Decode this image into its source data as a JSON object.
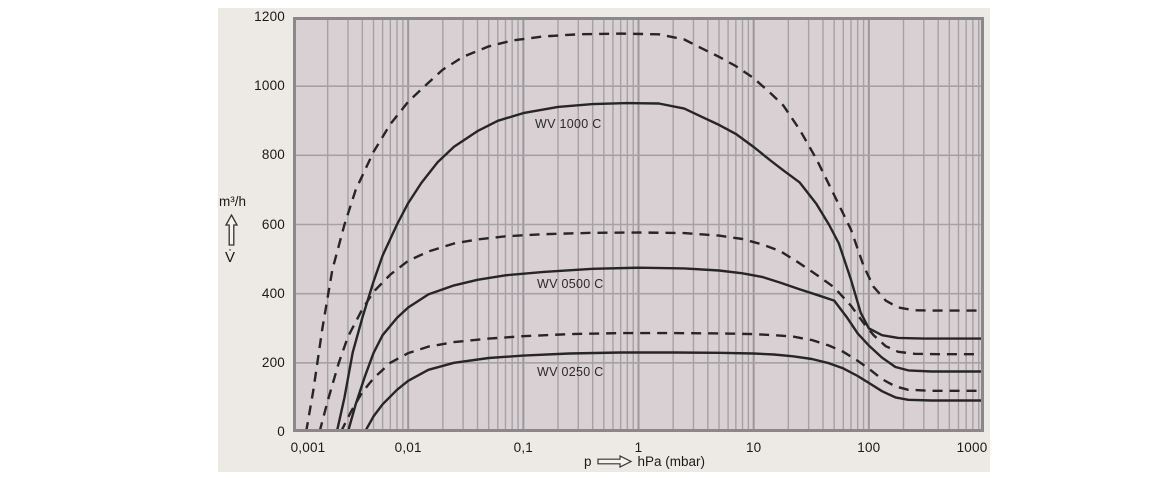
{
  "colors": {
    "page_bg": "#ffffff",
    "panel_bg": "#edeae6",
    "plot_bg": "#d8d0d2",
    "grid_minor": "#a5a1a5",
    "grid_decade": "#9b979b",
    "plot_border": "#8b888b",
    "curve": "#262626",
    "text": "#1a1a1a"
  },
  "y_axis": {
    "unit": "m³/h",
    "symbol": "V̇",
    "tick_labels": [
      "1200",
      "1000",
      "800",
      "600",
      "400",
      "200",
      "0"
    ],
    "tick_values": [
      1200,
      1000,
      800,
      600,
      400,
      200,
      0
    ]
  },
  "x_axis": {
    "prefix": "p",
    "unit_label": "hPa (mbar)",
    "tick_labels": [
      "0,001",
      "0,01",
      "0,1",
      "1",
      "10",
      "100",
      "1000"
    ],
    "tick_values": [
      0.001,
      0.01,
      0.1,
      1,
      10,
      100,
      1000
    ]
  },
  "chart_data": {
    "type": "line",
    "x_scale": "log",
    "xlabel": "p hPa (mbar)",
    "ylabel": "V m³/h",
    "xlim": [
      0.001,
      1000
    ],
    "ylim": [
      0,
      1200
    ],
    "grid": "log minor gridlines 2-9 per decade, horizontal every 200",
    "curve_labels": [
      {
        "text": "WV 1000 C"
      },
      {
        "text": "WV 0500 C"
      },
      {
        "text": "WV 0250 C"
      }
    ],
    "series": [
      {
        "id": "wv1000-dashed",
        "model": "WV 1000 C",
        "line_style": "dashed",
        "points": [
          [
            0.0013,
            0
          ],
          [
            0.0015,
            120
          ],
          [
            0.0018,
            300
          ],
          [
            0.0022,
            470
          ],
          [
            0.0028,
            600
          ],
          [
            0.0035,
            700
          ],
          [
            0.005,
            810
          ],
          [
            0.007,
            890
          ],
          [
            0.01,
            955
          ],
          [
            0.015,
            1010
          ],
          [
            0.02,
            1048
          ],
          [
            0.03,
            1085
          ],
          [
            0.05,
            1115
          ],
          [
            0.08,
            1132
          ],
          [
            0.15,
            1144
          ],
          [
            0.3,
            1150
          ],
          [
            0.7,
            1152
          ],
          [
            1.5,
            1150
          ],
          [
            2.5,
            1135
          ],
          [
            3.5,
            1110
          ],
          [
            5,
            1085
          ],
          [
            7,
            1058
          ],
          [
            10,
            1023
          ],
          [
            14,
            980
          ],
          [
            18,
            945
          ],
          [
            25,
            875
          ],
          [
            35,
            790
          ],
          [
            50,
            685
          ],
          [
            70,
            585
          ],
          [
            90,
            480
          ],
          [
            110,
            420
          ],
          [
            140,
            380
          ],
          [
            180,
            360
          ],
          [
            250,
            352
          ],
          [
            400,
            351
          ],
          [
            1000,
            351
          ]
        ]
      },
      {
        "id": "wv1000-solid",
        "model": "WV 1000 C",
        "line_style": "solid",
        "points": [
          [
            0.0024,
            0
          ],
          [
            0.0028,
            100
          ],
          [
            0.0033,
            230
          ],
          [
            0.004,
            330
          ],
          [
            0.005,
            435
          ],
          [
            0.006,
            510
          ],
          [
            0.008,
            600
          ],
          [
            0.01,
            662
          ],
          [
            0.013,
            720
          ],
          [
            0.018,
            780
          ],
          [
            0.025,
            825
          ],
          [
            0.04,
            870
          ],
          [
            0.06,
            900
          ],
          [
            0.1,
            922
          ],
          [
            0.2,
            940
          ],
          [
            0.4,
            948
          ],
          [
            0.8,
            951
          ],
          [
            1.5,
            950
          ],
          [
            2.5,
            935
          ],
          [
            3.5,
            912
          ],
          [
            5,
            888
          ],
          [
            7,
            862
          ],
          [
            10,
            824
          ],
          [
            14,
            785
          ],
          [
            18,
            757
          ],
          [
            25,
            722
          ],
          [
            35,
            660
          ],
          [
            45,
            600
          ],
          [
            55,
            545
          ],
          [
            70,
            440
          ],
          [
            85,
            345
          ],
          [
            100,
            300
          ],
          [
            130,
            280
          ],
          [
            180,
            272
          ],
          [
            300,
            270
          ],
          [
            1000,
            270
          ]
        ]
      },
      {
        "id": "wv0500-dashed",
        "model": "WV 0500 C",
        "line_style": "dashed",
        "points": [
          [
            0.0017,
            0
          ],
          [
            0.002,
            90
          ],
          [
            0.0025,
            200
          ],
          [
            0.003,
            275
          ],
          [
            0.004,
            355
          ],
          [
            0.005,
            405
          ],
          [
            0.007,
            455
          ],
          [
            0.01,
            495
          ],
          [
            0.015,
            522
          ],
          [
            0.025,
            545
          ],
          [
            0.04,
            557
          ],
          [
            0.07,
            566
          ],
          [
            0.15,
            572
          ],
          [
            0.4,
            576
          ],
          [
            1,
            577
          ],
          [
            2.5,
            575
          ],
          [
            5,
            568
          ],
          [
            8,
            558
          ],
          [
            12,
            542
          ],
          [
            17,
            523
          ],
          [
            25,
            488
          ],
          [
            35,
            455
          ],
          [
            50,
            418
          ],
          [
            70,
            365
          ],
          [
            90,
            315
          ],
          [
            110,
            280
          ],
          [
            140,
            248
          ],
          [
            180,
            232
          ],
          [
            250,
            226
          ],
          [
            400,
            225
          ],
          [
            1000,
            225
          ]
        ]
      },
      {
        "id": "wv0500-solid",
        "model": "WV 0500 C",
        "line_style": "solid",
        "points": [
          [
            0.003,
            0
          ],
          [
            0.0035,
            80
          ],
          [
            0.0042,
            160
          ],
          [
            0.005,
            228
          ],
          [
            0.006,
            280
          ],
          [
            0.008,
            330
          ],
          [
            0.01,
            360
          ],
          [
            0.015,
            398
          ],
          [
            0.025,
            424
          ],
          [
            0.04,
            440
          ],
          [
            0.07,
            453
          ],
          [
            0.15,
            463
          ],
          [
            0.4,
            472
          ],
          [
            1,
            475
          ],
          [
            2.5,
            473
          ],
          [
            5,
            467
          ],
          [
            8,
            459
          ],
          [
            12,
            448
          ],
          [
            17,
            432
          ],
          [
            25,
            413
          ],
          [
            35,
            397
          ],
          [
            50,
            380
          ],
          [
            65,
            330
          ],
          [
            80,
            285
          ],
          [
            100,
            250
          ],
          [
            130,
            215
          ],
          [
            170,
            188
          ],
          [
            220,
            178
          ],
          [
            350,
            175
          ],
          [
            1000,
            175
          ]
        ]
      },
      {
        "id": "wv0250-dashed",
        "model": "WV 0250 C",
        "line_style": "dashed",
        "points": [
          [
            0.0026,
            0
          ],
          [
            0.0032,
            60
          ],
          [
            0.004,
            115
          ],
          [
            0.005,
            155
          ],
          [
            0.007,
            200
          ],
          [
            0.01,
            228
          ],
          [
            0.015,
            247
          ],
          [
            0.025,
            260
          ],
          [
            0.05,
            270
          ],
          [
            0.1,
            277
          ],
          [
            0.25,
            283
          ],
          [
            0.7,
            286
          ],
          [
            2,
            286
          ],
          [
            5,
            285
          ],
          [
            10,
            283
          ],
          [
            15,
            280
          ],
          [
            22,
            276
          ],
          [
            32,
            266
          ],
          [
            45,
            250
          ],
          [
            60,
            232
          ],
          [
            80,
            206
          ],
          [
            100,
            183
          ],
          [
            130,
            153
          ],
          [
            170,
            132
          ],
          [
            220,
            122
          ],
          [
            350,
            119
          ],
          [
            1000,
            119
          ]
        ]
      },
      {
        "id": "wv0250-solid",
        "model": "WV 0250 C",
        "line_style": "solid",
        "points": [
          [
            0.0042,
            0
          ],
          [
            0.005,
            45
          ],
          [
            0.006,
            80
          ],
          [
            0.008,
            122
          ],
          [
            0.01,
            148
          ],
          [
            0.015,
            180
          ],
          [
            0.025,
            200
          ],
          [
            0.05,
            214
          ],
          [
            0.1,
            221
          ],
          [
            0.25,
            227
          ],
          [
            0.7,
            230
          ],
          [
            2,
            230
          ],
          [
            5,
            229
          ],
          [
            10,
            227
          ],
          [
            15,
            224
          ],
          [
            22,
            219
          ],
          [
            32,
            211
          ],
          [
            45,
            199
          ],
          [
            60,
            184
          ],
          [
            80,
            162
          ],
          [
            100,
            142
          ],
          [
            130,
            118
          ],
          [
            170,
            100
          ],
          [
            220,
            93
          ],
          [
            350,
            91
          ],
          [
            1000,
            91
          ]
        ]
      }
    ]
  }
}
